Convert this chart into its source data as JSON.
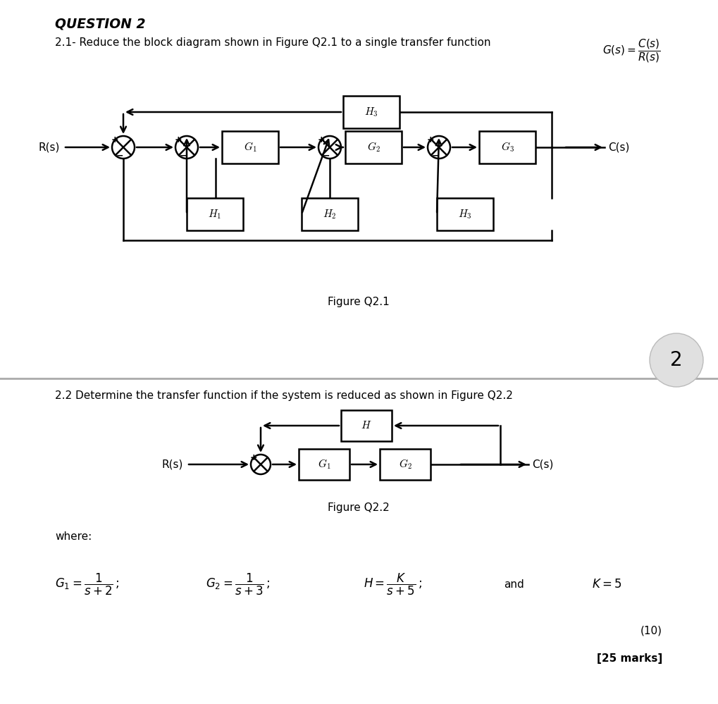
{
  "bg_color": "#ffffff",
  "title": "QUESTION 2",
  "q21_text": "2.1- Reduce the block diagram shown in Figure Q2.1 to a single transfer function  $G(s) = \\dfrac{C(s)}{R(s)}$",
  "q22_text": "2.2 Determine the transfer function if the system is reduced as shown in Figure Q2.2",
  "fig_q21_label": "Figure Q2.1",
  "fig_q22_label": "Figure Q2.2",
  "where_text": "where:",
  "g1_formula": "$G_1 = \\dfrac{1}{s+2}\\,;$",
  "g2_formula": "$G_2 = \\dfrac{1}{s+3}\\,;$",
  "h_formula": "$H = \\dfrac{K}{s+5}\\,;$",
  "and_text": "and",
  "k_formula": "$K = 5$",
  "marks_10": "(10)",
  "marks_25": "[25 marks]",
  "page_num": "2"
}
